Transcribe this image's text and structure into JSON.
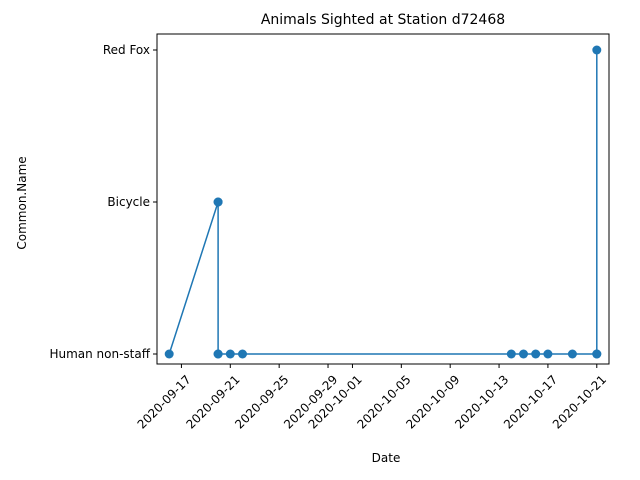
{
  "chart_data": {
    "type": "line",
    "title": "Animals Sighted at Station d72468",
    "xlabel": "Date",
    "ylabel": "Common.Name",
    "categories_y": [
      "Human non-staff",
      "Bicycle",
      "Red Fox"
    ],
    "xlim": [
      "2020-09-15",
      "2020-10-22"
    ],
    "x_ticks": [
      "2020-09-17",
      "2020-09-21",
      "2020-09-25",
      "2020-09-29",
      "2020-10-01",
      "2020-10-05",
      "2020-10-09",
      "2020-10-13",
      "2020-10-17",
      "2020-10-21"
    ],
    "grid": false,
    "line_color": "#1f77b4",
    "series": [
      {
        "points": [
          {
            "x": "2020-09-16T00:00",
            "y": "Human non-staff"
          },
          {
            "x": "2020-09-20T00:00",
            "y": "Bicycle"
          },
          {
            "x": "2020-09-20T00:00",
            "y": "Human non-staff"
          },
          {
            "x": "2020-09-20T00:00",
            "y": "Bicycle"
          },
          {
            "x": "2020-09-20T00:00",
            "y": "Human non-staff"
          },
          {
            "x": "2020-09-21T00:00",
            "y": "Human non-staff"
          },
          {
            "x": "2020-09-22T00:00",
            "y": "Human non-staff"
          },
          {
            "x": "2020-10-14T00:00",
            "y": "Human non-staff"
          },
          {
            "x": "2020-10-15T00:00",
            "y": "Human non-staff"
          },
          {
            "x": "2020-10-16T00:00",
            "y": "Human non-staff"
          },
          {
            "x": "2020-10-17T00:00",
            "y": "Human non-staff"
          },
          {
            "x": "2020-10-19T00:00",
            "y": "Human non-staff"
          },
          {
            "x": "2020-10-21T00:00",
            "y": "Human non-staff"
          },
          {
            "x": "2020-10-21T00:00",
            "y": "Red Fox"
          },
          {
            "x": "2020-10-21T00:00",
            "y": "Human non-staff"
          }
        ]
      }
    ]
  }
}
